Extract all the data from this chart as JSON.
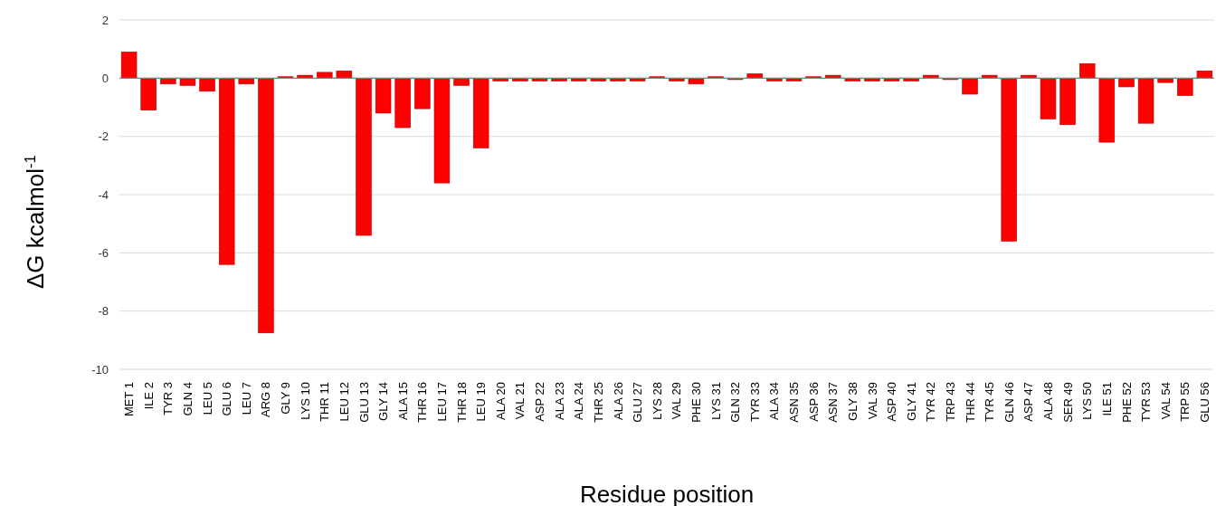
{
  "chart_data": {
    "type": "bar",
    "xlabel": "Residue position",
    "ylabel": "ΔG kcalmol$^{-1}$",
    "categories": [
      "MET 1",
      "ILE 2",
      "TYR 3",
      "GLN 4",
      "LEU 5",
      "GLU 6",
      "LEU 7",
      "ARG 8",
      "GLY 9",
      "LYS 10",
      "THR 11",
      "LEU 12",
      "GLU 13",
      "GLY 14",
      "ALA 15",
      "THR 16",
      "LEU 17",
      "THR 18",
      "LEU 19",
      "ALA 20",
      "VAL 21",
      "ASP 22",
      "ALA 23",
      "ALA 24",
      "THR 25",
      "ALA 26",
      "GLU 27",
      "LYS 28",
      "VAL 29",
      "PHE 30",
      "LYS 31",
      "GLN 32",
      "TYR 33",
      "ALA 34",
      "ASN 35",
      "ASP 36",
      "ASN 37",
      "GLY 38",
      "VAL 39",
      "ASP 40",
      "GLY 41",
      "TYR 42",
      "TRP 43",
      "THR 44",
      "TYR 45",
      "GLN 46",
      "ASP 47",
      "ALA  48",
      "SER 49",
      "LYS 50",
      "ILE 51",
      "PHE 52",
      "TYR 53",
      "VAL 54",
      "TRP 55",
      "GLU 56"
    ],
    "values": [
      0.9,
      -1.1,
      -0.2,
      -0.25,
      -0.45,
      -6.4,
      -0.2,
      -8.75,
      0.05,
      0.1,
      0.2,
      0.25,
      -5.4,
      -1.2,
      -1.7,
      -1.05,
      -3.6,
      -0.25,
      -2.4,
      -0.1,
      -0.1,
      -0.1,
      -0.1,
      -0.1,
      -0.1,
      -0.1,
      -0.1,
      0.05,
      -0.1,
      -0.2,
      0.05,
      -0.05,
      0.15,
      -0.1,
      -0.1,
      0.05,
      0.1,
      -0.1,
      -0.1,
      -0.1,
      -0.1,
      0.1,
      -0.05,
      -0.55,
      0.1,
      -5.6,
      0.1,
      -1.4,
      -1.6,
      0.5,
      -2.2,
      -0.3,
      -1.55,
      -0.15,
      -0.6,
      0.25
    ],
    "color": "#ff0000",
    "ylim": [
      -10,
      2
    ],
    "yticks": [
      -10,
      -8,
      -6,
      -4,
      -2,
      0,
      2
    ],
    "grid": "y"
  }
}
